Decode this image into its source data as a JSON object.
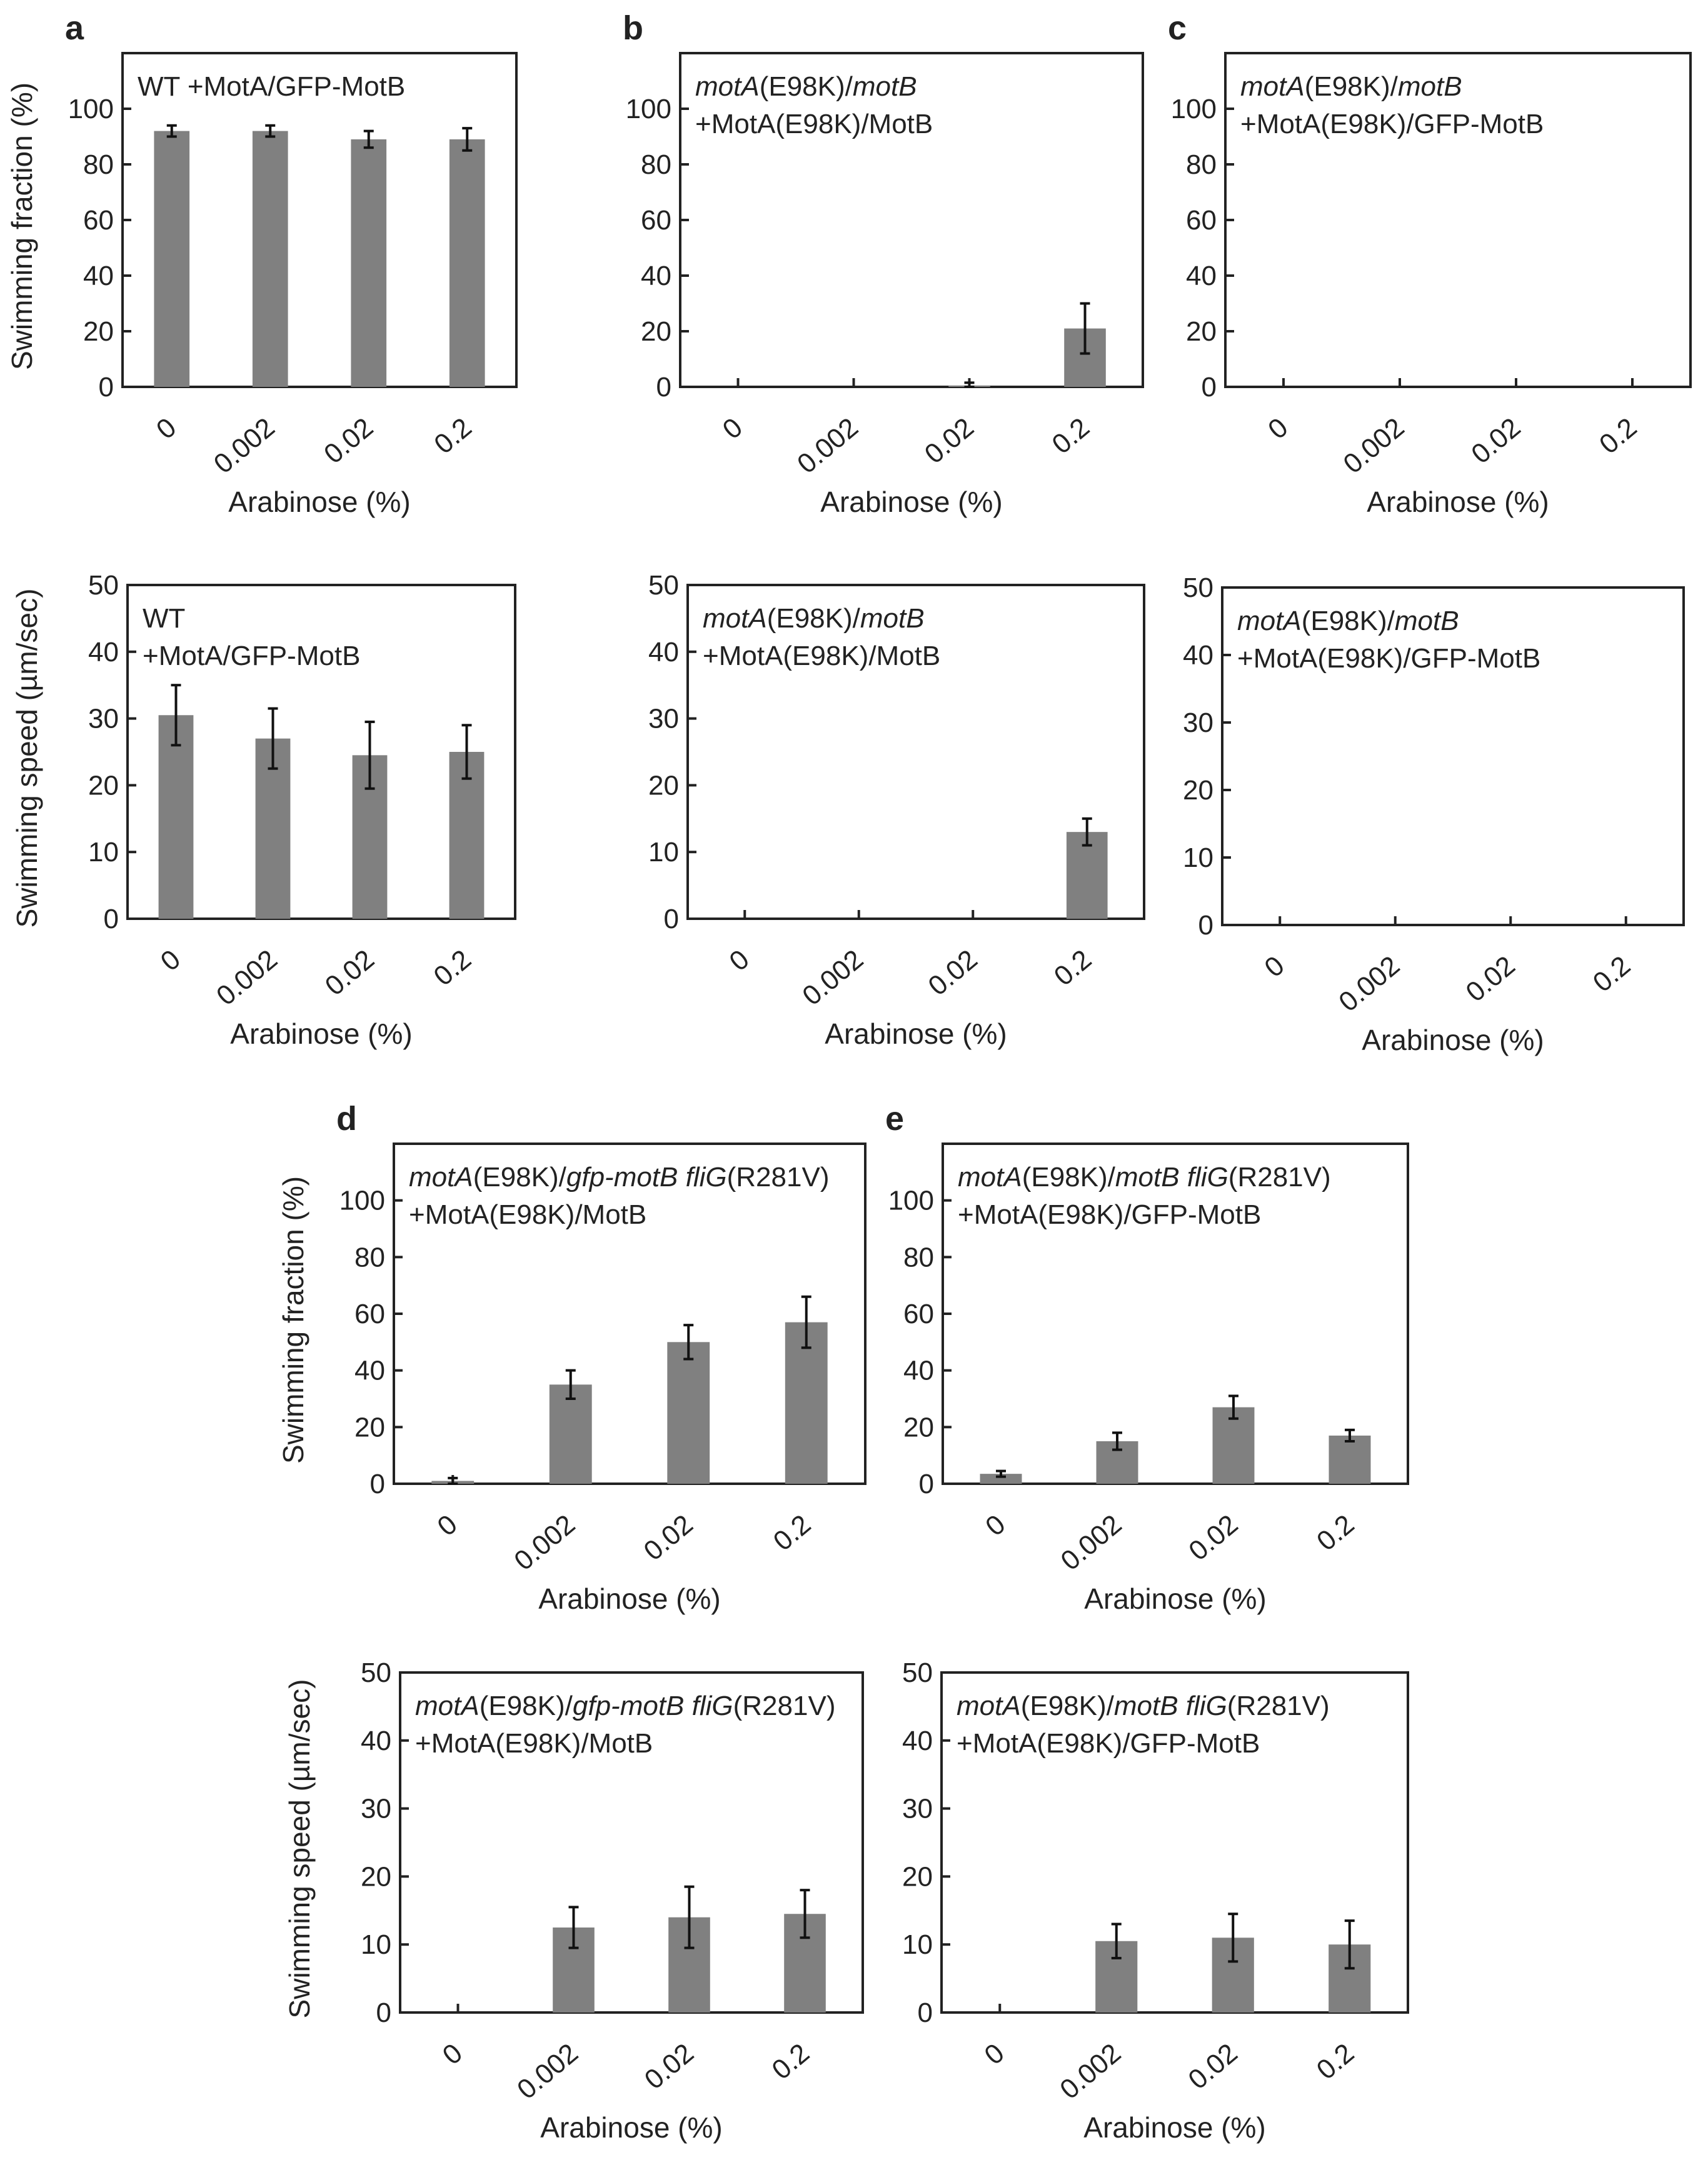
{
  "chart_data": [
    {
      "id": "a-fraction",
      "panel_letter": "a",
      "type": "bar",
      "categories": [
        "0",
        "0.002",
        "0.02",
        "0.2"
      ],
      "values": [
        92,
        92,
        89,
        89
      ],
      "errors": [
        2,
        2,
        3,
        4
      ],
      "legend_lines": [
        {
          "segments": [
            {
              "text": "WT +MotA/GFP-MotB",
              "italic": false
            }
          ]
        }
      ],
      "ylabel": "Swimming fraction (%)",
      "xlabel": "Arabinose (%)",
      "ylim": [
        0,
        120
      ],
      "yticks": [
        0,
        20,
        40,
        60,
        80,
        100
      ]
    },
    {
      "id": "b-fraction",
      "panel_letter": "b",
      "type": "bar",
      "categories": [
        "0",
        "0.002",
        "0.02",
        "0.2"
      ],
      "values": [
        0,
        0,
        0.5,
        21
      ],
      "errors": [
        0,
        0,
        1,
        9
      ],
      "legend_lines": [
        {
          "segments": [
            {
              "text": "motA",
              "italic": true
            },
            {
              "text": "(E98K)/",
              "italic": false
            },
            {
              "text": "motB",
              "italic": true
            }
          ]
        },
        {
          "segments": [
            {
              "text": "+MotA(E98K)/MotB",
              "italic": false
            }
          ]
        }
      ],
      "ylabel": "",
      "xlabel": "Arabinose (%)",
      "ylim": [
        0,
        120
      ],
      "yticks": [
        0,
        20,
        40,
        60,
        80,
        100
      ]
    },
    {
      "id": "c-fraction",
      "panel_letter": "c",
      "type": "bar",
      "categories": [
        "0",
        "0.002",
        "0.02",
        "0.2"
      ],
      "values": [
        0,
        0,
        0,
        0
      ],
      "errors": [
        0,
        0,
        0,
        0
      ],
      "legend_lines": [
        {
          "segments": [
            {
              "text": "motA",
              "italic": true
            },
            {
              "text": "(E98K)/",
              "italic": false
            },
            {
              "text": "motB",
              "italic": true
            }
          ]
        },
        {
          "segments": [
            {
              "text": "+MotA(E98K)/GFP-MotB",
              "italic": false
            }
          ]
        }
      ],
      "ylabel": "",
      "xlabel": "Arabinose (%)",
      "ylim": [
        0,
        120
      ],
      "yticks": [
        0,
        20,
        40,
        60,
        80,
        100
      ]
    },
    {
      "id": "a-speed",
      "panel_letter": "",
      "type": "bar",
      "categories": [
        "0",
        "0.002",
        "0.02",
        "0.2"
      ],
      "values": [
        30.5,
        27,
        24.5,
        25
      ],
      "errors": [
        4.5,
        4.5,
        5,
        4
      ],
      "legend_lines": [
        {
          "segments": [
            {
              "text": "WT",
              "italic": false
            }
          ]
        },
        {
          "segments": [
            {
              "text": "+MotA/GFP-MotB",
              "italic": false
            }
          ]
        }
      ],
      "ylabel": "Swimming speed (µm/sec)",
      "xlabel": "Arabinose (%)",
      "ylim": [
        0,
        50
      ],
      "yticks": [
        0,
        10,
        20,
        30,
        40,
        50
      ]
    },
    {
      "id": "b-speed",
      "panel_letter": "",
      "type": "bar",
      "categories": [
        "0",
        "0.002",
        "0.02",
        "0.2"
      ],
      "values": [
        0,
        0,
        0,
        13
      ],
      "errors": [
        0,
        0,
        0,
        2
      ],
      "legend_lines": [
        {
          "segments": [
            {
              "text": "motA",
              "italic": true
            },
            {
              "text": "(E98K)/",
              "italic": false
            },
            {
              "text": "motB",
              "italic": true
            }
          ]
        },
        {
          "segments": [
            {
              "text": "+MotA(E98K)/MotB",
              "italic": false
            }
          ]
        }
      ],
      "ylabel": "",
      "xlabel": "Arabinose (%)",
      "ylim": [
        0,
        50
      ],
      "yticks": [
        0,
        10,
        20,
        30,
        40,
        50
      ]
    },
    {
      "id": "c-speed",
      "panel_letter": "",
      "type": "bar",
      "categories": [
        "0",
        "0.002",
        "0.02",
        "0.2"
      ],
      "values": [
        0,
        0,
        0,
        0
      ],
      "errors": [
        0,
        0,
        0,
        0
      ],
      "legend_lines": [
        {
          "segments": [
            {
              "text": "motA",
              "italic": true
            },
            {
              "text": "(E98K)/",
              "italic": false
            },
            {
              "text": "motB",
              "italic": true
            }
          ]
        },
        {
          "segments": [
            {
              "text": "+MotA(E98K)/GFP-MotB",
              "italic": false
            }
          ]
        }
      ],
      "ylabel": "",
      "xlabel": "Arabinose (%)",
      "ylim": [
        0,
        50
      ],
      "yticks": [
        0,
        10,
        20,
        30,
        40,
        50
      ]
    },
    {
      "id": "d-fraction",
      "panel_letter": "d",
      "type": "bar",
      "categories": [
        "0",
        "0.002",
        "0.02",
        "0.2"
      ],
      "values": [
        1,
        35,
        50,
        57
      ],
      "errors": [
        1,
        5,
        6,
        9
      ],
      "legend_lines": [
        {
          "segments": [
            {
              "text": "motA",
              "italic": true
            },
            {
              "text": "(E98K)/",
              "italic": false
            },
            {
              "text": "gfp-motB fliG",
              "italic": true
            },
            {
              "text": "(R281V)",
              "italic": false
            }
          ]
        },
        {
          "segments": [
            {
              "text": "+MotA(E98K)/MotB",
              "italic": false
            }
          ]
        }
      ],
      "ylabel": "Swimming fraction (%)",
      "xlabel": "Arabinose (%)",
      "ylim": [
        0,
        120
      ],
      "yticks": [
        0,
        20,
        40,
        60,
        80,
        100
      ]
    },
    {
      "id": "e-fraction",
      "panel_letter": "e",
      "type": "bar",
      "categories": [
        "0",
        "0.002",
        "0.02",
        "0.2"
      ],
      "values": [
        3.5,
        15,
        27,
        17
      ],
      "errors": [
        1,
        3,
        4,
        2
      ],
      "legend_lines": [
        {
          "segments": [
            {
              "text": "motA",
              "italic": true
            },
            {
              "text": "(E98K)/",
              "italic": false
            },
            {
              "text": "motB fliG",
              "italic": true
            },
            {
              "text": "(R281V)",
              "italic": false
            }
          ]
        },
        {
          "segments": [
            {
              "text": "+MotA(E98K)/GFP-MotB",
              "italic": false
            }
          ]
        }
      ],
      "ylabel": "",
      "xlabel": "Arabinose (%)",
      "ylim": [
        0,
        120
      ],
      "yticks": [
        0,
        20,
        40,
        60,
        80,
        100
      ]
    },
    {
      "id": "d-speed",
      "panel_letter": "",
      "type": "bar",
      "categories": [
        "0",
        "0.002",
        "0.02",
        "0.2"
      ],
      "values": [
        0,
        12.5,
        14,
        14.5
      ],
      "errors": [
        0,
        3,
        4.5,
        3.5
      ],
      "legend_lines": [
        {
          "segments": [
            {
              "text": "motA",
              "italic": true
            },
            {
              "text": "(E98K)/",
              "italic": false
            },
            {
              "text": "gfp-motB fliG",
              "italic": true
            },
            {
              "text": "(R281V)",
              "italic": false
            }
          ]
        },
        {
          "segments": [
            {
              "text": "+MotA(E98K)/MotB",
              "italic": false
            }
          ]
        }
      ],
      "ylabel": "Swimming speed (µm/sec)",
      "xlabel": "Arabinose (%)",
      "ylim": [
        0,
        50
      ],
      "yticks": [
        0,
        10,
        20,
        30,
        40,
        50
      ]
    },
    {
      "id": "e-speed",
      "panel_letter": "",
      "type": "bar",
      "categories": [
        "0",
        "0.002",
        "0.02",
        "0.2"
      ],
      "values": [
        0,
        10.5,
        11,
        10
      ],
      "errors": [
        0,
        2.5,
        3.5,
        3.5
      ],
      "legend_lines": [
        {
          "segments": [
            {
              "text": "motA",
              "italic": true
            },
            {
              "text": "(E98K)/",
              "italic": false
            },
            {
              "text": "motB fliG",
              "italic": true
            },
            {
              "text": "(R281V)",
              "italic": false
            }
          ]
        },
        {
          "segments": [
            {
              "text": "+MotA(E98K)/GFP-MotB",
              "italic": false
            }
          ]
        }
      ],
      "ylabel": "",
      "xlabel": "Arabinose (%)",
      "ylim": [
        0,
        50
      ],
      "yticks": [
        0,
        10,
        20,
        30,
        40,
        50
      ]
    }
  ]
}
